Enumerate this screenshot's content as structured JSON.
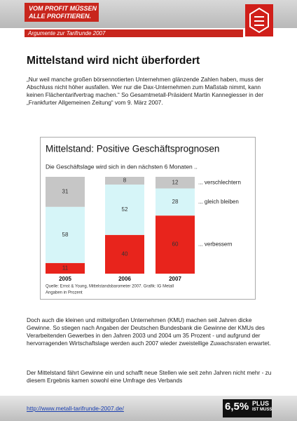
{
  "header": {
    "logo": "VOM PROFIT MÜSSEN ALLE PROFITIEREN.",
    "subtitle": "Argumente zur Tarifrunde 2007"
  },
  "title": "Mittelstand wird nicht überfordert",
  "paragraphs": [
    "„Nur weil manche großen börsennotierten Unternehmen glänzende Zahlen haben, muss der Abschluss nicht höher ausfallen. Wer nur die Dax-Unternehmen zum Maßstab nimmt, kann keinen Flächentarifvertrag machen.“ So Gesamtmetall-Präsident Martin Kannegiesser in der „Frankfurter Allgemeinen Zeitung“ vom 9. März 2007.",
    "Doch auch die kleinen und mittelgroßen Unternehmen (KMU) machen seit Jahren dicke Gewinne. So stiegen nach Angaben der Deutschen Bundesbank die Gewinne der KMUs des Verarbeitenden Gewerbes in den Jahren 2003 und 2004 um 35 Prozent - und aufgrund der hervorragenden Wirtschaftslage werden auch 2007 wieder zweistellige Zuwachsraten erwartet.",
    "Der Mittelstand fährt Gewinne ein und schafft neue Stellen wie seit zehn Jahren nicht mehr - zu diesem Ergebnis kamen sowohl eine Umfrage des Verbands"
  ],
  "chart_data": {
    "type": "stacked_bar",
    "title": "Mittelstand: Positive Geschäftsprognosen",
    "subtitle": "Die Geschäftslage wird sich in den nächsten 6 Monaten ..",
    "source": [
      "Quelle: Ernst & Young, Mittelstandsbarometer 2007. Grafik: IG Metall",
      "Angaben in Prozent"
    ],
    "categories": [
      "2005",
      "2006",
      "2007"
    ],
    "ylim": [
      0,
      100
    ],
    "series": [
      {
        "name": "... verbessern",
        "color": "#e8241c",
        "values": [
          11,
          40,
          60
        ]
      },
      {
        "name": "... gleich bleiben",
        "color": "#d6f5f8",
        "values": [
          58,
          52,
          28
        ]
      },
      {
        "name": "... verschlechtern",
        "color": "#c6c6c6",
        "values": [
          31,
          8,
          12
        ]
      }
    ]
  },
  "footer": {
    "link": "http://www.metall-tarifrunde-2007.de/",
    "badge": "6,5%",
    "badge_text": [
      "PLUS",
      "IST MUSS"
    ]
  }
}
